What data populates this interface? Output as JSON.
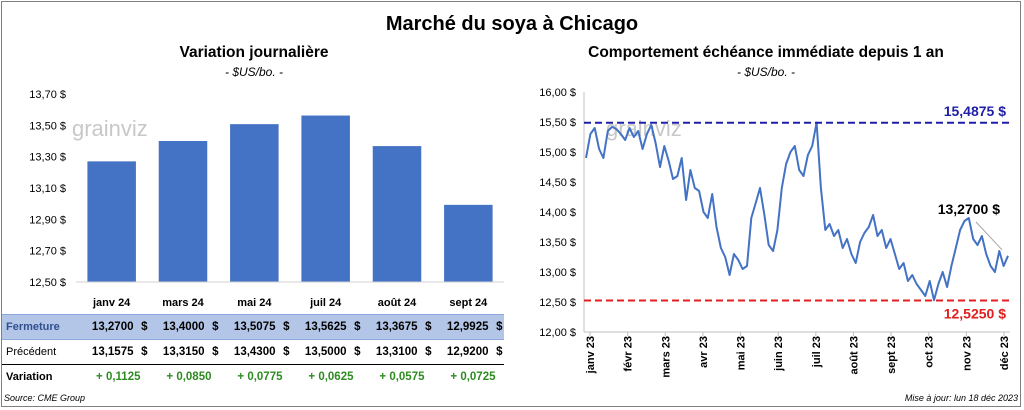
{
  "title": "Marché du soya à Chicago",
  "left": {
    "title": "Variation journalière",
    "subtitle": "- $US/bo. -"
  },
  "right": {
    "title": "Comportement échéance immédiate depuis 1 an",
    "subtitle": "- $US/bo. -",
    "high_label": "15,4875 $",
    "low_label": "12,5250 $",
    "last_label": "13,2700 $"
  },
  "watermark": "grainviz",
  "table": {
    "rows": [
      {
        "label": "Fermeture",
        "cells": [
          "13,2700",
          "13,4000",
          "13,5075",
          "13,5625",
          "13,3675",
          "12,9925"
        ],
        "unit": "$"
      },
      {
        "label": "Précédent",
        "cells": [
          "13,1575",
          "13,3150",
          "13,4300",
          "13,5000",
          "13,3100",
          "12,9200"
        ],
        "unit": "$"
      },
      {
        "label": "Variation",
        "cells": [
          "+ 0,1125",
          "+ 0,0850",
          "+ 0,0775",
          "+ 0,0625",
          "+ 0,0575",
          "+ 0,0725"
        ],
        "unit": ""
      }
    ]
  },
  "source": "Source: CME Group",
  "updated": "Mise à jour: lun 18 déc 2023",
  "colors": {
    "bar": "#4472c4",
    "line": "#4472c4",
    "high": "#1f1fa8",
    "low": "#e02020"
  },
  "chart_data": [
    {
      "type": "bar",
      "title": "Variation journalière",
      "categories": [
        "janv 24",
        "mars 24",
        "mai 24",
        "juil 24",
        "août 24",
        "sept 24"
      ],
      "values": [
        13.27,
        13.4,
        13.5075,
        13.5625,
        13.3675,
        12.9925
      ],
      "ylim": [
        12.5,
        13.7
      ],
      "yticks": [
        "12,50 $",
        "12,70 $",
        "12,90 $",
        "13,10 $",
        "13,30 $",
        "13,50 $",
        "13,70 $"
      ],
      "grid": false
    },
    {
      "type": "line",
      "title": "Comportement échéance immédiate depuis 1 an",
      "xticks": [
        "janv 23",
        "févr 23",
        "mars 23",
        "avr 23",
        "mai 23",
        "juin 23",
        "juil 23",
        "août 23",
        "sept 23",
        "oct 23",
        "nov 23",
        "déc 23"
      ],
      "ylim": [
        12.0,
        16.0
      ],
      "yticks": [
        "12,00 $",
        "12,50 $",
        "13,00 $",
        "13,50 $",
        "14,00 $",
        "14,50 $",
        "15,00 $",
        "15,50 $",
        "16,00 $"
      ],
      "y": [
        14.9,
        15.3,
        15.4,
        15.05,
        14.9,
        15.35,
        15.42,
        15.38,
        15.3,
        15.2,
        15.4,
        15.25,
        15.35,
        15.05,
        15.3,
        15.45,
        15.15,
        14.75,
        15.1,
        14.85,
        14.55,
        14.6,
        14.9,
        14.2,
        14.7,
        14.4,
        14.35,
        14.0,
        13.9,
        14.3,
        13.75,
        13.4,
        13.25,
        12.95,
        13.3,
        13.2,
        13.05,
        13.1,
        13.9,
        14.15,
        14.4,
        13.95,
        13.45,
        13.35,
        13.7,
        14.4,
        14.8,
        15.0,
        15.1,
        14.7,
        14.6,
        14.95,
        15.1,
        15.49,
        14.4,
        13.7,
        13.8,
        13.6,
        13.7,
        13.4,
        13.55,
        13.3,
        13.15,
        13.5,
        13.65,
        13.75,
        13.95,
        13.6,
        13.7,
        13.4,
        13.55,
        13.3,
        13.05,
        13.15,
        12.85,
        12.95,
        12.8,
        12.7,
        12.6,
        12.85,
        12.53,
        12.8,
        13.0,
        12.75,
        13.1,
        13.4,
        13.7,
        13.85,
        13.9,
        13.55,
        13.45,
        13.6,
        13.3,
        13.1,
        13.0,
        13.35,
        13.1,
        13.27
      ],
      "reference_lines": [
        15.4875,
        12.525
      ],
      "last_value": 13.27,
      "grid": false
    }
  ]
}
